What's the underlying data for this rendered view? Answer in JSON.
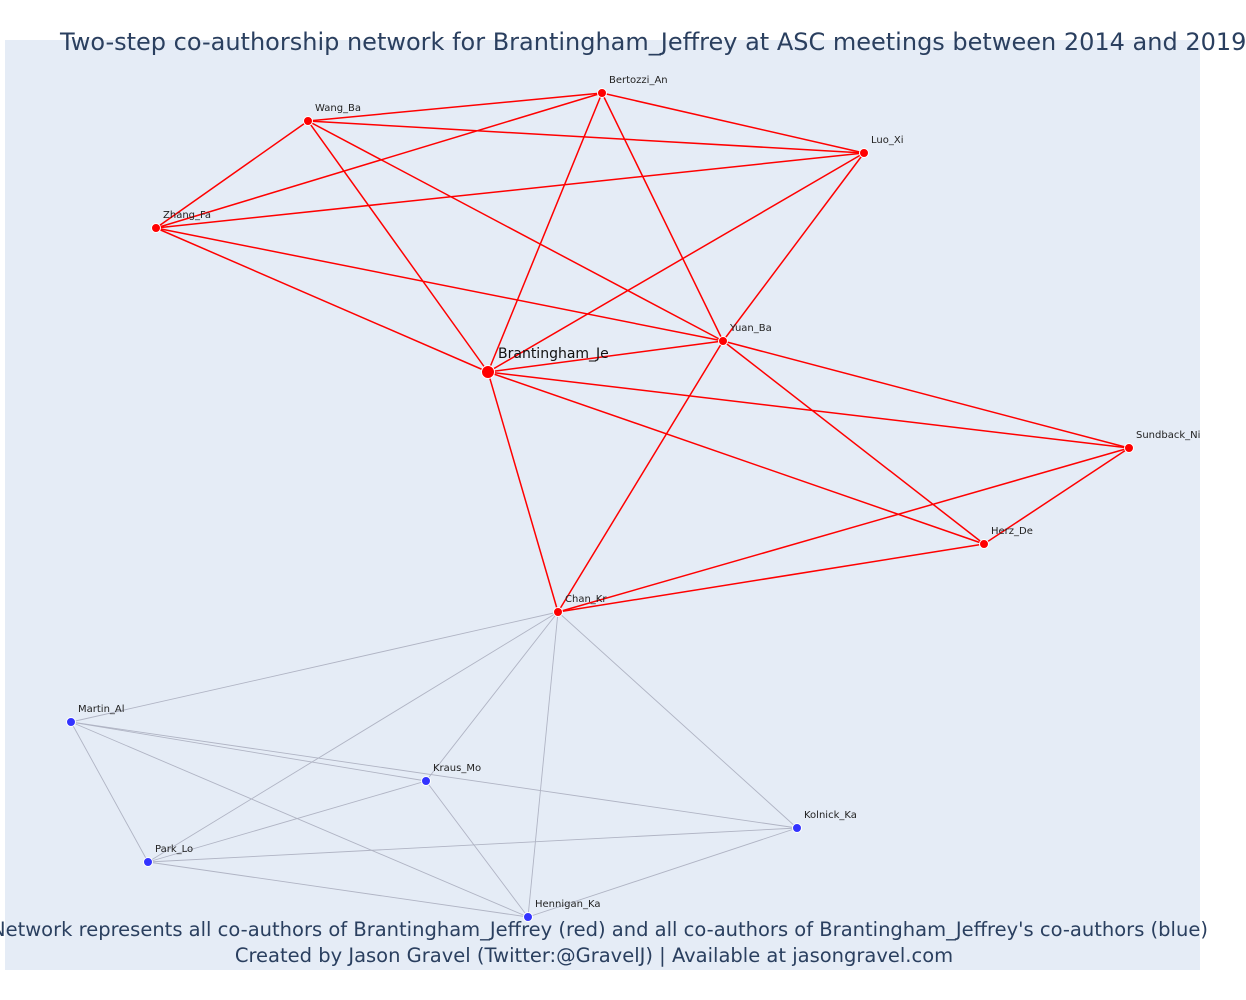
{
  "title": "Two-step co-authorship network for Brantingham_Jeffrey at ASC meetings between 2014 and 2019",
  "caption": {
    "line1": "Network represents all co-authors of Brantingham_Jeffrey (red) and all co-authors of Brantingham_Jeffrey's co-authors (blue)",
    "line2": "Created by Jason Gravel (Twitter:@GravelJ) | Available at jasongravel.com"
  },
  "colors": {
    "first_step": "#ff0000",
    "second_step": "#3333ff",
    "second_step_edge": "#b0b4c4",
    "background": "#e5ecf6"
  },
  "nodes": [
    {
      "id": "Brantingham_Je",
      "label": "Brantingham_Je",
      "group": "ego"
    },
    {
      "id": "Bertozzi_An",
      "label": "Bertozzi_An",
      "group": "first"
    },
    {
      "id": "Wang_Ba",
      "label": "Wang_Ba",
      "group": "first"
    },
    {
      "id": "Luo_Xi",
      "label": "Luo_Xi",
      "group": "first"
    },
    {
      "id": "Zhang_Fa",
      "label": "Zhang_Fa",
      "group": "first"
    },
    {
      "id": "Yuan_Ba",
      "label": "Yuan_Ba",
      "group": "first"
    },
    {
      "id": "Sundback_Ni",
      "label": "Sundback_Ni",
      "group": "first"
    },
    {
      "id": "Herz_De",
      "label": "Herz_De",
      "group": "first"
    },
    {
      "id": "Chan_Kr",
      "label": "Chan_Kr",
      "group": "first"
    },
    {
      "id": "Martin_Al",
      "label": "Martin_Al",
      "group": "second"
    },
    {
      "id": "Kraus_Mo",
      "label": "Kraus_Mo",
      "group": "second"
    },
    {
      "id": "Kolnick_Ka",
      "label": "Kolnick_Ka",
      "group": "second"
    },
    {
      "id": "Park_Lo",
      "label": "Park_Lo",
      "group": "second"
    },
    {
      "id": "Hennigan_Ka",
      "label": "Hennigan_Ka",
      "group": "second"
    }
  ],
  "edges": [
    [
      "Wang_Ba",
      "Bertozzi_An"
    ],
    [
      "Wang_Ba",
      "Luo_Xi"
    ],
    [
      "Wang_Ba",
      "Zhang_Fa"
    ],
    [
      "Wang_Ba",
      "Brantingham_Je"
    ],
    [
      "Wang_Ba",
      "Yuan_Ba"
    ],
    [
      "Bertozzi_An",
      "Luo_Xi"
    ],
    [
      "Bertozzi_An",
      "Zhang_Fa"
    ],
    [
      "Bertozzi_An",
      "Brantingham_Je"
    ],
    [
      "Bertozzi_An",
      "Yuan_Ba"
    ],
    [
      "Luo_Xi",
      "Zhang_Fa"
    ],
    [
      "Luo_Xi",
      "Brantingham_Je"
    ],
    [
      "Luo_Xi",
      "Yuan_Ba"
    ],
    [
      "Zhang_Fa",
      "Brantingham_Je"
    ],
    [
      "Zhang_Fa",
      "Yuan_Ba"
    ],
    [
      "Brantingham_Je",
      "Yuan_Ba"
    ],
    [
      "Brantingham_Je",
      "Sundback_Ni"
    ],
    [
      "Brantingham_Je",
      "Herz_De"
    ],
    [
      "Brantingham_Je",
      "Chan_Kr"
    ],
    [
      "Yuan_Ba",
      "Sundback_Ni"
    ],
    [
      "Yuan_Ba",
      "Herz_De"
    ],
    [
      "Yuan_Ba",
      "Chan_Kr"
    ],
    [
      "Sundback_Ni",
      "Herz_De"
    ],
    [
      "Sundback_Ni",
      "Chan_Kr"
    ],
    [
      "Herz_De",
      "Chan_Kr"
    ],
    [
      "Chan_Kr",
      "Martin_Al"
    ],
    [
      "Chan_Kr",
      "Kraus_Mo"
    ],
    [
      "Chan_Kr",
      "Park_Lo"
    ],
    [
      "Chan_Kr",
      "Hennigan_Ka"
    ],
    [
      "Chan_Kr",
      "Kolnick_Ka"
    ],
    [
      "Martin_Al",
      "Kraus_Mo"
    ],
    [
      "Martin_Al",
      "Kolnick_Ka"
    ],
    [
      "Martin_Al",
      "Park_Lo"
    ],
    [
      "Martin_Al",
      "Hennigan_Ka"
    ],
    [
      "Kraus_Mo",
      "Park_Lo"
    ],
    [
      "Kraus_Mo",
      "Hennigan_Ka"
    ],
    [
      "Park_Lo",
      "Kolnick_Ka"
    ],
    [
      "Park_Lo",
      "Hennigan_Ka"
    ],
    [
      "Hennigan_Ka",
      "Kolnick_Ka"
    ]
  ]
}
